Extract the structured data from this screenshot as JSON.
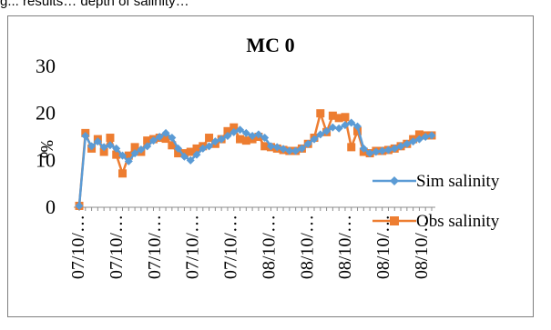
{
  "caption": "g... results… depth of salinity…",
  "chart_data": {
    "type": "line",
    "title": "MC 0",
    "ylabel": "‰",
    "xlabel": "",
    "ylim": [
      0,
      30
    ],
    "yticks": [
      0,
      10,
      20,
      30
    ],
    "grid": false,
    "legend_position": "right",
    "x_tick_labels": [
      "07/10/…",
      "07/10/…",
      "07/10/…",
      "07/10/…",
      "07/10/…",
      "08/10/…",
      "08/10/…",
      "08/10/…",
      "08/10/…",
      "08/10/…"
    ],
    "x_count": 58,
    "series": [
      {
        "name": "Sim salinity",
        "color": "#5b9bd5",
        "marker": "diamond",
        "values": [
          0.3,
          15.2,
          13.0,
          14.0,
          12.8,
          13.2,
          12.5,
          11.0,
          9.8,
          11.5,
          12.3,
          13.0,
          14.2,
          15.0,
          15.8,
          14.8,
          12.5,
          10.8,
          10.0,
          11.2,
          12.5,
          13.0,
          14.0,
          14.5,
          15.2,
          16.0,
          16.5,
          15.8,
          15.2,
          15.5,
          14.8,
          13.0,
          12.8,
          12.4,
          12.0,
          12.0,
          12.5,
          13.5,
          14.5,
          15.5,
          16.2,
          17.0,
          16.8,
          17.5,
          18.0,
          17.2,
          12.5,
          11.5,
          11.8,
          12.0,
          12.2,
          12.5,
          13.0,
          13.5,
          14.0,
          14.5,
          15.0,
          15.3
        ]
      },
      {
        "name": "Obs salinity",
        "color": "#ed7d31",
        "marker": "square",
        "values": [
          0.3,
          15.8,
          12.5,
          14.5,
          11.8,
          14.8,
          11.2,
          7.2,
          11.0,
          12.8,
          11.8,
          14.2,
          14.5,
          14.8,
          14.6,
          13.2,
          11.5,
          11.5,
          11.8,
          12.5,
          13.0,
          14.8,
          13.5,
          14.5,
          16.2,
          17.0,
          14.5,
          14.2,
          14.5,
          15.0,
          13.0,
          12.8,
          12.5,
          12.2,
          12.0,
          12.0,
          12.5,
          13.5,
          14.8,
          20.0,
          16.0,
          19.5,
          19.0,
          19.2,
          12.8,
          16.2,
          11.8,
          11.5,
          12.0,
          12.0,
          12.2,
          12.5,
          13.0,
          13.5,
          14.5,
          15.5,
          15.3,
          15.3
        ]
      }
    ]
  }
}
